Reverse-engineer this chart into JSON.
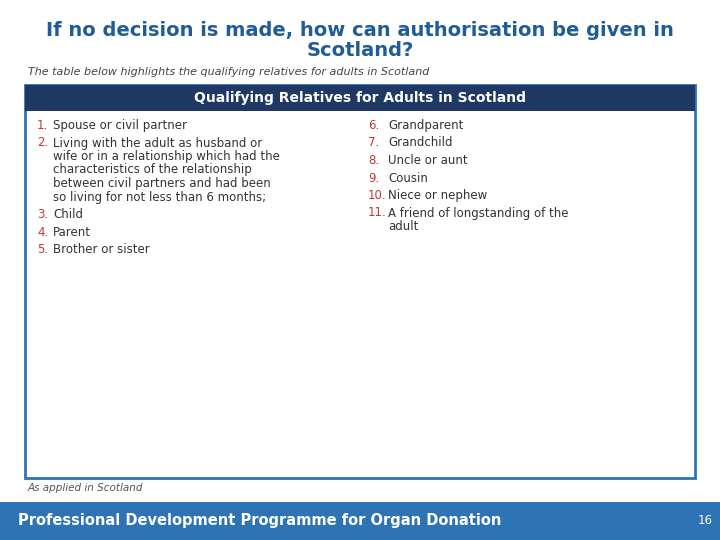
{
  "title_line1": "If no decision is made, how can authorisation be given in",
  "title_line2": "Scotland?",
  "subtitle": "The table below highlights the qualifying relatives for adults in Scotland",
  "table_header": "Qualifying Relatives for Adults in Scotland",
  "left_items": [
    {
      "num": "1.",
      "text": "Spouse or civil partner"
    },
    {
      "num": "2.",
      "text": "Living with the adult as husband or\nwife or in a relationship which had the\ncharacteristics of the relationship\nbetween civil partners and had been\nso living for not less than 6 months;"
    },
    {
      "num": "3.",
      "text": "Child"
    },
    {
      "num": "4.",
      "text": "Parent"
    },
    {
      "num": "5.",
      "text": "Brother or sister"
    }
  ],
  "right_items": [
    {
      "num": "6.",
      "text": "Grandparent"
    },
    {
      "num": "7.",
      "text": "Grandchild"
    },
    {
      "num": "8.",
      "text": "Uncle or aunt"
    },
    {
      "num": "9.",
      "text": "Cousin"
    },
    {
      "num": "10.",
      "text": "Niece or nephew"
    },
    {
      "num": "11.",
      "text": "A friend of longstanding of the\nadult"
    }
  ],
  "footer_note": "As applied in Scotland",
  "footer_bar_text": "Professional Development Programme for Organ Donation",
  "footer_page": "16",
  "bg_color": "#ffffff",
  "title_color": "#1F5C99",
  "subtitle_color": "#444444",
  "table_header_bg": "#1F3864",
  "table_header_text_color": "#ffffff",
  "table_border_color": "#2E74B5",
  "table_bg_color": "#ffffff",
  "item_number_color": "#C0392B",
  "item_text_color": "#333333",
  "footer_bar_bg": "#2E74B5",
  "footer_bar_text_color": "#ffffff",
  "footer_note_color": "#555555"
}
